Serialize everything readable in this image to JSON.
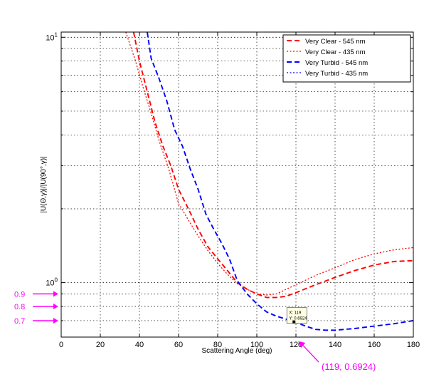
{
  "chart_data": {
    "type": "line",
    "title": "",
    "xlabel": "Scattering Angle (deg)",
    "ylabel": "|U(Θ,γ)|/|U(90°,γ)|",
    "xlim": [
      0,
      180
    ],
    "ylim": [
      0.6,
      10.5
    ],
    "yscale": "log",
    "grid": true,
    "legend_position": "top-right",
    "x_ticks": [
      "0",
      "20",
      "40",
      "60",
      "80",
      "100",
      "120",
      "140",
      "160",
      "180"
    ],
    "x_tick_values": [
      0,
      20,
      40,
      60,
      80,
      100,
      120,
      140,
      160,
      180
    ],
    "y_ticks": [
      {
        "value": 1,
        "base": "10",
        "exp": "0"
      },
      {
        "value": 10,
        "base": "10",
        "exp": "1"
      }
    ],
    "series": [
      {
        "name": "Very Clear - 545 nm",
        "color": "#ff0000",
        "style": "dashed",
        "x": [
          37,
          40,
          44,
          48,
          52,
          56,
          60,
          65,
          70,
          75,
          80,
          85,
          90,
          95,
          100,
          105,
          110,
          115,
          120,
          130,
          140,
          150,
          160,
          170,
          180
        ],
        "y": [
          10.5,
          8.0,
          6.0,
          4.5,
          3.6,
          3.0,
          2.4,
          2.0,
          1.65,
          1.4,
          1.25,
          1.12,
          1.0,
          0.94,
          0.9,
          0.87,
          0.87,
          0.88,
          0.91,
          0.98,
          1.05,
          1.12,
          1.18,
          1.22,
          1.23
        ]
      },
      {
        "name": "Very Clear - 435 nm",
        "color": "#ff0000",
        "style": "dotted",
        "x": [
          33,
          38,
          42,
          46,
          50,
          55,
          60,
          65,
          70,
          75,
          80,
          85,
          90,
          95,
          100,
          105,
          110,
          115,
          120,
          130,
          140,
          150,
          160,
          170,
          180
        ],
        "y": [
          10.5,
          8.0,
          6.2,
          4.9,
          3.8,
          2.9,
          2.1,
          1.8,
          1.55,
          1.35,
          1.2,
          1.08,
          0.99,
          0.94,
          0.9,
          0.89,
          0.9,
          0.94,
          0.98,
          1.07,
          1.15,
          1.24,
          1.31,
          1.36,
          1.39
        ]
      },
      {
        "name": "Very Turbid - 545 nm",
        "color": "#0000ff",
        "style": "dashed",
        "x": [
          44,
          46,
          50,
          54,
          58,
          62,
          66,
          70,
          74,
          78,
          82,
          86,
          90,
          95,
          100,
          105,
          110,
          115,
          119,
          125,
          130,
          135,
          140,
          150,
          160,
          170,
          180
        ],
        "y": [
          10.5,
          8.2,
          6.8,
          5.5,
          4.2,
          3.6,
          2.9,
          2.4,
          1.9,
          1.65,
          1.45,
          1.25,
          1.02,
          0.9,
          0.82,
          0.76,
          0.73,
          0.71,
          0.6924,
          0.665,
          0.645,
          0.64,
          0.64,
          0.65,
          0.665,
          0.68,
          0.7
        ]
      }
    ],
    "legend_entries": [
      {
        "name": "Very Clear - 545 nm",
        "color": "#ff0000",
        "style": "dashed"
      },
      {
        "name": "Very Clear - 435 nm",
        "color": "#ff0000",
        "style": "dotted"
      },
      {
        "name": "Very Turbid - 545 nm",
        "color": "#0000ff",
        "style": "dashed"
      },
      {
        "name": "Very Turbid - 435 nm",
        "color": "#0000ff",
        "style": "dotted"
      }
    ],
    "datatip": {
      "x": 119,
      "y": 0.6924,
      "line1": "X: 119",
      "line2": "Y: 0.6924"
    },
    "annotations": {
      "color": "#ff00ff",
      "y_markers": [
        {
          "label": "0.9",
          "value": 0.9
        },
        {
          "label": "0.8",
          "value": 0.8
        },
        {
          "label": "0.7",
          "value": 0.7
        }
      ],
      "point_label": "(119, 0.6924)"
    }
  }
}
